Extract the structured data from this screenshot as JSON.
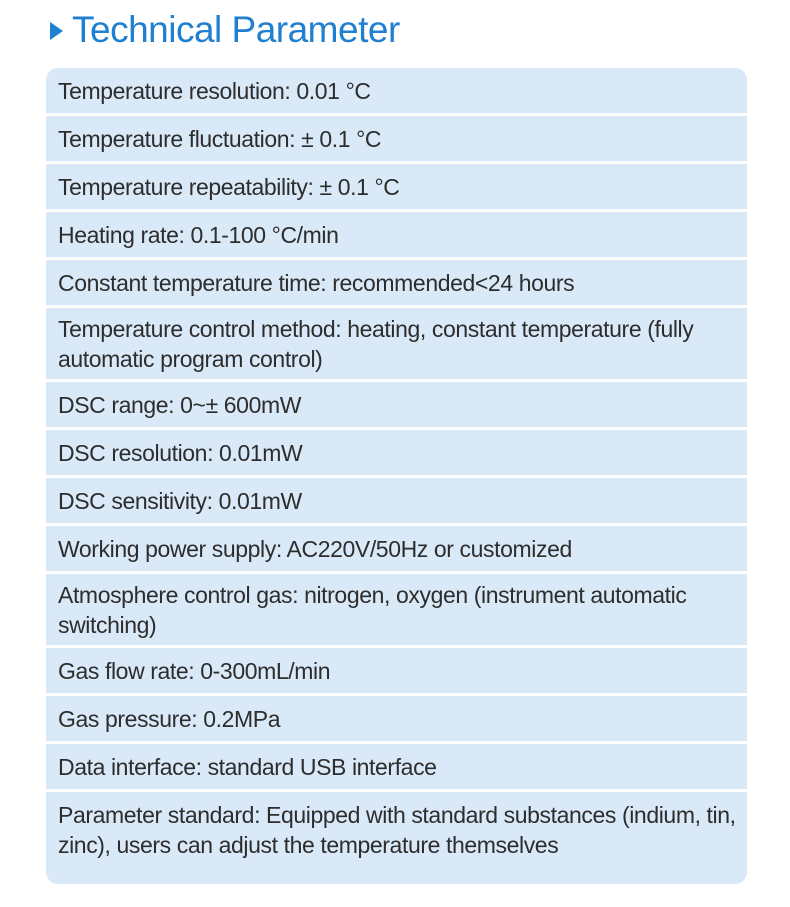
{
  "header": {
    "title": "Technical Parameter",
    "accent_color": "#1f7fd1",
    "icon": "play-triangle-icon"
  },
  "panel": {
    "background_color": "#d9e9f8",
    "rows": [
      {
        "text": "Temperature resolution: 0.01 °C"
      },
      {
        "text": "Temperature fluctuation: ± 0.1 °C"
      },
      {
        "text": "Temperature repeatability: ± 0.1 °C"
      },
      {
        "text": "Heating rate: 0.1-100 °C/min"
      },
      {
        "text": "Constant temperature time: recommended<24 hours"
      },
      {
        "text": "Temperature control method: heating, constant temperature (fully automatic program control)"
      },
      {
        "text": "DSC range: 0~± 600mW"
      },
      {
        "text": "DSC resolution: 0.01mW"
      },
      {
        "text": "DSC sensitivity: 0.01mW"
      },
      {
        "text": "Working power supply: AC220V/50Hz or customized"
      },
      {
        "text": "Atmosphere control gas: nitrogen, oxygen (instrument automatic switching)"
      },
      {
        "text": "Gas flow rate: 0-300mL/min"
      },
      {
        "text": "Gas pressure: 0.2MPa"
      },
      {
        "text": "Data interface: standard USB interface"
      },
      {
        "text": "Parameter standard: Equipped with standard substances (indium, tin, zinc), users can adjust the temperature themselves"
      }
    ]
  }
}
